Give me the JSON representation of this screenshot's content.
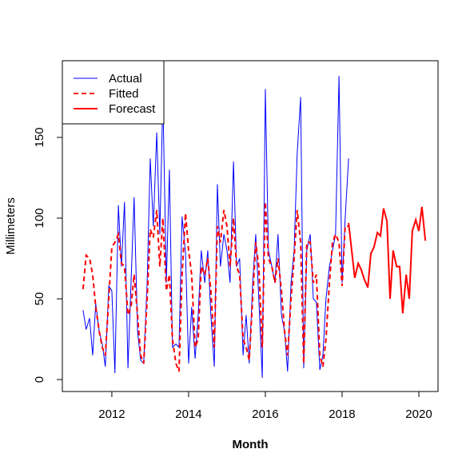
{
  "chart_data": {
    "type": "line",
    "xlabel": "Month",
    "ylabel": "Millimeters",
    "xlim": [
      2010.71,
      2020.5
    ],
    "ylim": [
      -7.4,
      197.5
    ],
    "xticks": [
      2012,
      2014,
      2016,
      2018,
      2020
    ],
    "yticks": [
      0,
      50,
      100,
      150
    ],
    "legend": "topleft",
    "series": [
      {
        "name": "Actual",
        "color": "#0000ff",
        "style": "solid",
        "x": [
          2011.25,
          2011.33,
          2011.42,
          2011.5,
          2011.58,
          2011.67,
          2011.75,
          2011.83,
          2011.92,
          2012,
          2012.08,
          2012.17,
          2012.25,
          2012.33,
          2012.42,
          2012.5,
          2012.58,
          2012.67,
          2012.75,
          2012.83,
          2012.92,
          2013,
          2013.08,
          2013.17,
          2013.25,
          2013.33,
          2013.42,
          2013.5,
          2013.58,
          2013.67,
          2013.75,
          2013.83,
          2013.92,
          2014,
          2014.08,
          2014.17,
          2014.25,
          2014.33,
          2014.42,
          2014.5,
          2014.58,
          2014.67,
          2014.75,
          2014.83,
          2014.92,
          2015,
          2015.08,
          2015.17,
          2015.25,
          2015.33,
          2015.42,
          2015.5,
          2015.58,
          2015.67,
          2015.75,
          2015.83,
          2015.92,
          2016,
          2016.08,
          2016.17,
          2016.25,
          2016.33,
          2016.42,
          2016.5,
          2016.58,
          2016.67,
          2016.75,
          2016.83,
          2016.92,
          2017,
          2017.08,
          2017.17,
          2017.25,
          2017.33,
          2017.42,
          2017.5,
          2017.58,
          2017.67,
          2017.75,
          2017.83,
          2017.92,
          2018,
          2018.08,
          2018.17
        ],
        "values": [
          43,
          31,
          38,
          15,
          47,
          30,
          22,
          8,
          58,
          55,
          4,
          108,
          70,
          110,
          7,
          60,
          113,
          30,
          12,
          10,
          60,
          137,
          95,
          153,
          90,
          175,
          60,
          130,
          20,
          22,
          20,
          101,
          78,
          10,
          45,
          13,
          40,
          80,
          60,
          80,
          40,
          8,
          121,
          70,
          90,
          80,
          60,
          135,
          70,
          75,
          15,
          40,
          10,
          60,
          90,
          50,
          1,
          180,
          80,
          70,
          60,
          90,
          40,
          30,
          5,
          60,
          80,
          140,
          175,
          7,
          80,
          90,
          50,
          48,
          6,
          15,
          50,
          70,
          80,
          90,
          188,
          60,
          100,
          137
        ]
      },
      {
        "name": "Fitted",
        "color": "#ff0000",
        "style": "dashed",
        "x": [
          2011.25,
          2011.33,
          2011.42,
          2011.5,
          2011.58,
          2011.67,
          2011.75,
          2011.83,
          2011.92,
          2012,
          2012.08,
          2012.17,
          2012.25,
          2012.33,
          2012.42,
          2012.5,
          2012.58,
          2012.67,
          2012.75,
          2012.83,
          2012.92,
          2013,
          2013.08,
          2013.17,
          2013.25,
          2013.33,
          2013.42,
          2013.5,
          2013.58,
          2013.67,
          2013.75,
          2013.83,
          2013.92,
          2014,
          2014.08,
          2014.17,
          2014.25,
          2014.33,
          2014.42,
          2014.5,
          2014.58,
          2014.67,
          2014.75,
          2014.83,
          2014.92,
          2015,
          2015.08,
          2015.17,
          2015.25,
          2015.33,
          2015.42,
          2015.5,
          2015.58,
          2015.67,
          2015.75,
          2015.83,
          2015.92,
          2016,
          2016.08,
          2016.17,
          2016.25,
          2016.33,
          2016.42,
          2016.5,
          2016.58,
          2016.67,
          2016.75,
          2016.83,
          2016.92,
          2017,
          2017.08,
          2017.17,
          2017.25,
          2017.33,
          2017.42,
          2017.5,
          2017.58,
          2017.67,
          2017.75,
          2017.83,
          2017.92,
          2018,
          2018.08,
          2018.17
        ],
        "values": [
          56,
          77,
          75,
          65,
          45,
          30,
          20,
          15,
          50,
          82,
          85,
          90,
          72,
          70,
          40,
          45,
          65,
          40,
          15,
          10,
          50,
          93,
          88,
          105,
          70,
          100,
          55,
          65,
          25,
          10,
          5,
          65,
          103,
          80,
          65,
          20,
          25,
          70,
          65,
          75,
          55,
          20,
          95,
          85,
          105,
          95,
          70,
          100,
          70,
          65,
          25,
          20,
          12,
          50,
          85,
          70,
          20,
          110,
          75,
          70,
          60,
          75,
          55,
          30,
          15,
          50,
          75,
          105,
          85,
          10,
          85,
          85,
          60,
          65,
          15,
          8,
          25,
          60,
          85,
          90,
          85,
          58,
          95,
          95
        ]
      },
      {
        "name": "Forecast",
        "color": "#ff0000",
        "style": "solid",
        "x": [
          2018.17,
          2018.25,
          2018.33,
          2018.42,
          2018.5,
          2018.58,
          2018.67,
          2018.75,
          2018.83,
          2018.92,
          2019,
          2019.08,
          2019.17,
          2019.25,
          2019.33,
          2019.42,
          2019.5,
          2019.58,
          2019.67,
          2019.75,
          2019.83,
          2019.92,
          2020,
          2020.08,
          2020.17
        ],
        "values": [
          97,
          80,
          63,
          72,
          68,
          62,
          57,
          78,
          82,
          91,
          89,
          106,
          98,
          50,
          80,
          70,
          70,
          41,
          65,
          50,
          92,
          99,
          92,
          107,
          86
        ]
      }
    ]
  }
}
